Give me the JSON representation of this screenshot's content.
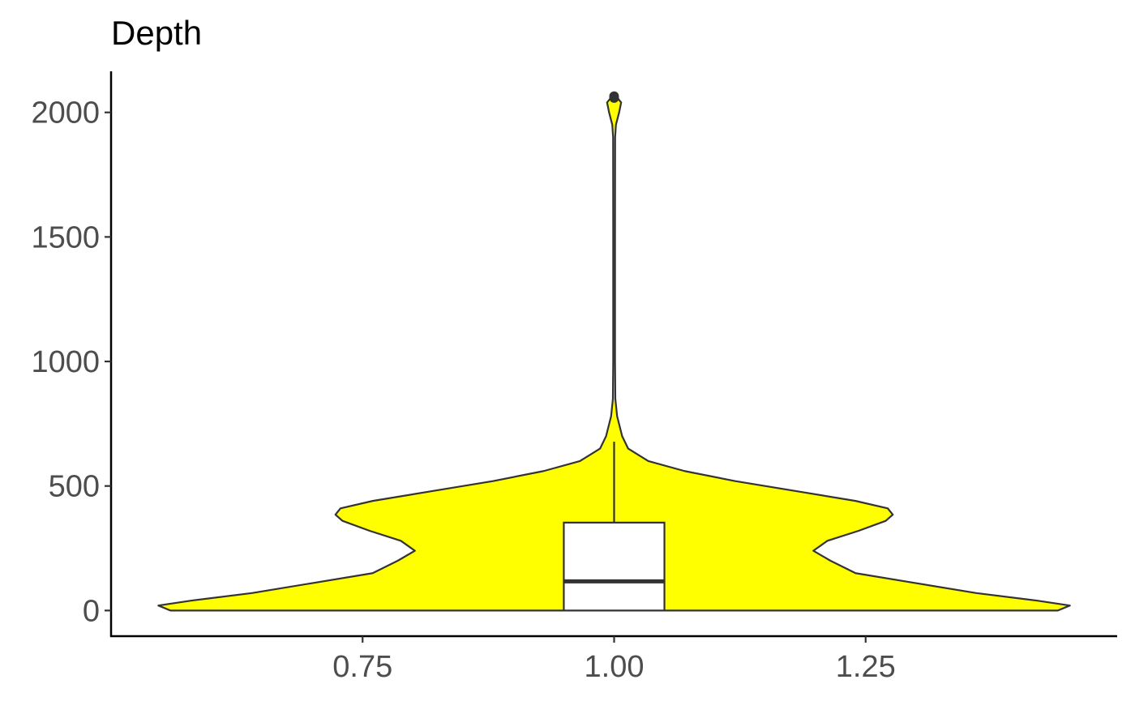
{
  "chart_data": {
    "type": "violin",
    "title": "Depth",
    "xlabel": "",
    "ylabel": "",
    "x_ticks": [
      {
        "value": 0.75,
        "label": "0.75"
      },
      {
        "value": 1.0,
        "label": "1.00"
      },
      {
        "value": 1.25,
        "label": "1.25"
      }
    ],
    "y_ticks": [
      {
        "value": 0,
        "label": "0"
      },
      {
        "value": 500,
        "label": "500"
      },
      {
        "value": 1000,
        "label": "1000"
      },
      {
        "value": 1500,
        "label": "1500"
      },
      {
        "value": 2000,
        "label": "2000"
      }
    ],
    "xlim": [
      0.5,
      1.5
    ],
    "ylim": [
      -103,
      2165
    ],
    "grid": false,
    "violin": {
      "center": 1.0,
      "fill_color": "#ffff00",
      "outline_color": "#333333",
      "density_profile": [
        {
          "y": 0,
          "half_width": 0.441
        },
        {
          "y": 20,
          "half_width": 0.453
        },
        {
          "y": 40,
          "half_width": 0.42
        },
        {
          "y": 70,
          "half_width": 0.36
        },
        {
          "y": 110,
          "half_width": 0.3
        },
        {
          "y": 150,
          "half_width": 0.24
        },
        {
          "y": 200,
          "half_width": 0.215
        },
        {
          "y": 240,
          "half_width": 0.198
        },
        {
          "y": 280,
          "half_width": 0.212
        },
        {
          "y": 320,
          "half_width": 0.243
        },
        {
          "y": 360,
          "half_width": 0.27
        },
        {
          "y": 385,
          "half_width": 0.277
        },
        {
          "y": 410,
          "half_width": 0.272
        },
        {
          "y": 440,
          "half_width": 0.24
        },
        {
          "y": 480,
          "half_width": 0.18
        },
        {
          "y": 520,
          "half_width": 0.12
        },
        {
          "y": 560,
          "half_width": 0.07
        },
        {
          "y": 600,
          "half_width": 0.034
        },
        {
          "y": 650,
          "half_width": 0.014
        },
        {
          "y": 700,
          "half_width": 0.008
        },
        {
          "y": 780,
          "half_width": 0.003
        },
        {
          "y": 850,
          "half_width": 0.0012
        },
        {
          "y": 1000,
          "half_width": 0.0009
        },
        {
          "y": 1500,
          "half_width": 0.0009
        },
        {
          "y": 1900,
          "half_width": 0.001
        },
        {
          "y": 1950,
          "half_width": 0.0018
        },
        {
          "y": 2000,
          "half_width": 0.005
        },
        {
          "y": 2040,
          "half_width": 0.007
        },
        {
          "y": 2060,
          "half_width": 0.003
        },
        {
          "y": 2070,
          "half_width": 0.0
        }
      ]
    },
    "boxplot": {
      "center": 1.0,
      "half_width": 0.05,
      "min": 0,
      "q1": 0,
      "median": 117,
      "q3": 353,
      "whisker_high": 678,
      "fill_color": "#ffffff",
      "outline_color": "#333333",
      "outliers": [
        2058,
        2065
      ]
    }
  }
}
